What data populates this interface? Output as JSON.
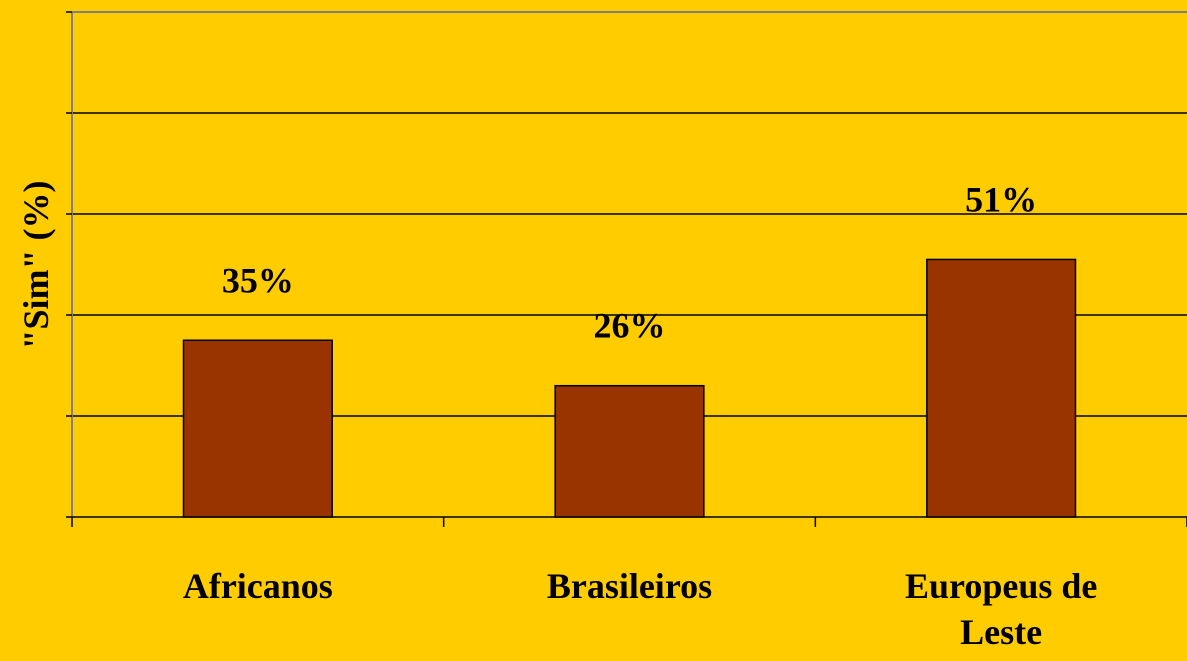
{
  "chart_data": {
    "type": "bar",
    "title": "",
    "xlabel": "",
    "ylabel": "\"Sim\" (%)",
    "categories": [
      "Africanos",
      "Brasileiros",
      "Europeus de Leste"
    ],
    "values": [
      35,
      26,
      51
    ],
    "data_labels": [
      "35%",
      "26%",
      "51%"
    ],
    "ylim": [
      0,
      100
    ],
    "y_gridline_step": 20,
    "y_tick_labels_shown": false,
    "grid": true,
    "legend": "none",
    "colors": {
      "background": "#FFCC00",
      "plot_area": "#FFCC00",
      "bar_fill": "#993300",
      "bar_stroke": "#000000",
      "gridline": "#000000",
      "axis": "#808080"
    }
  }
}
